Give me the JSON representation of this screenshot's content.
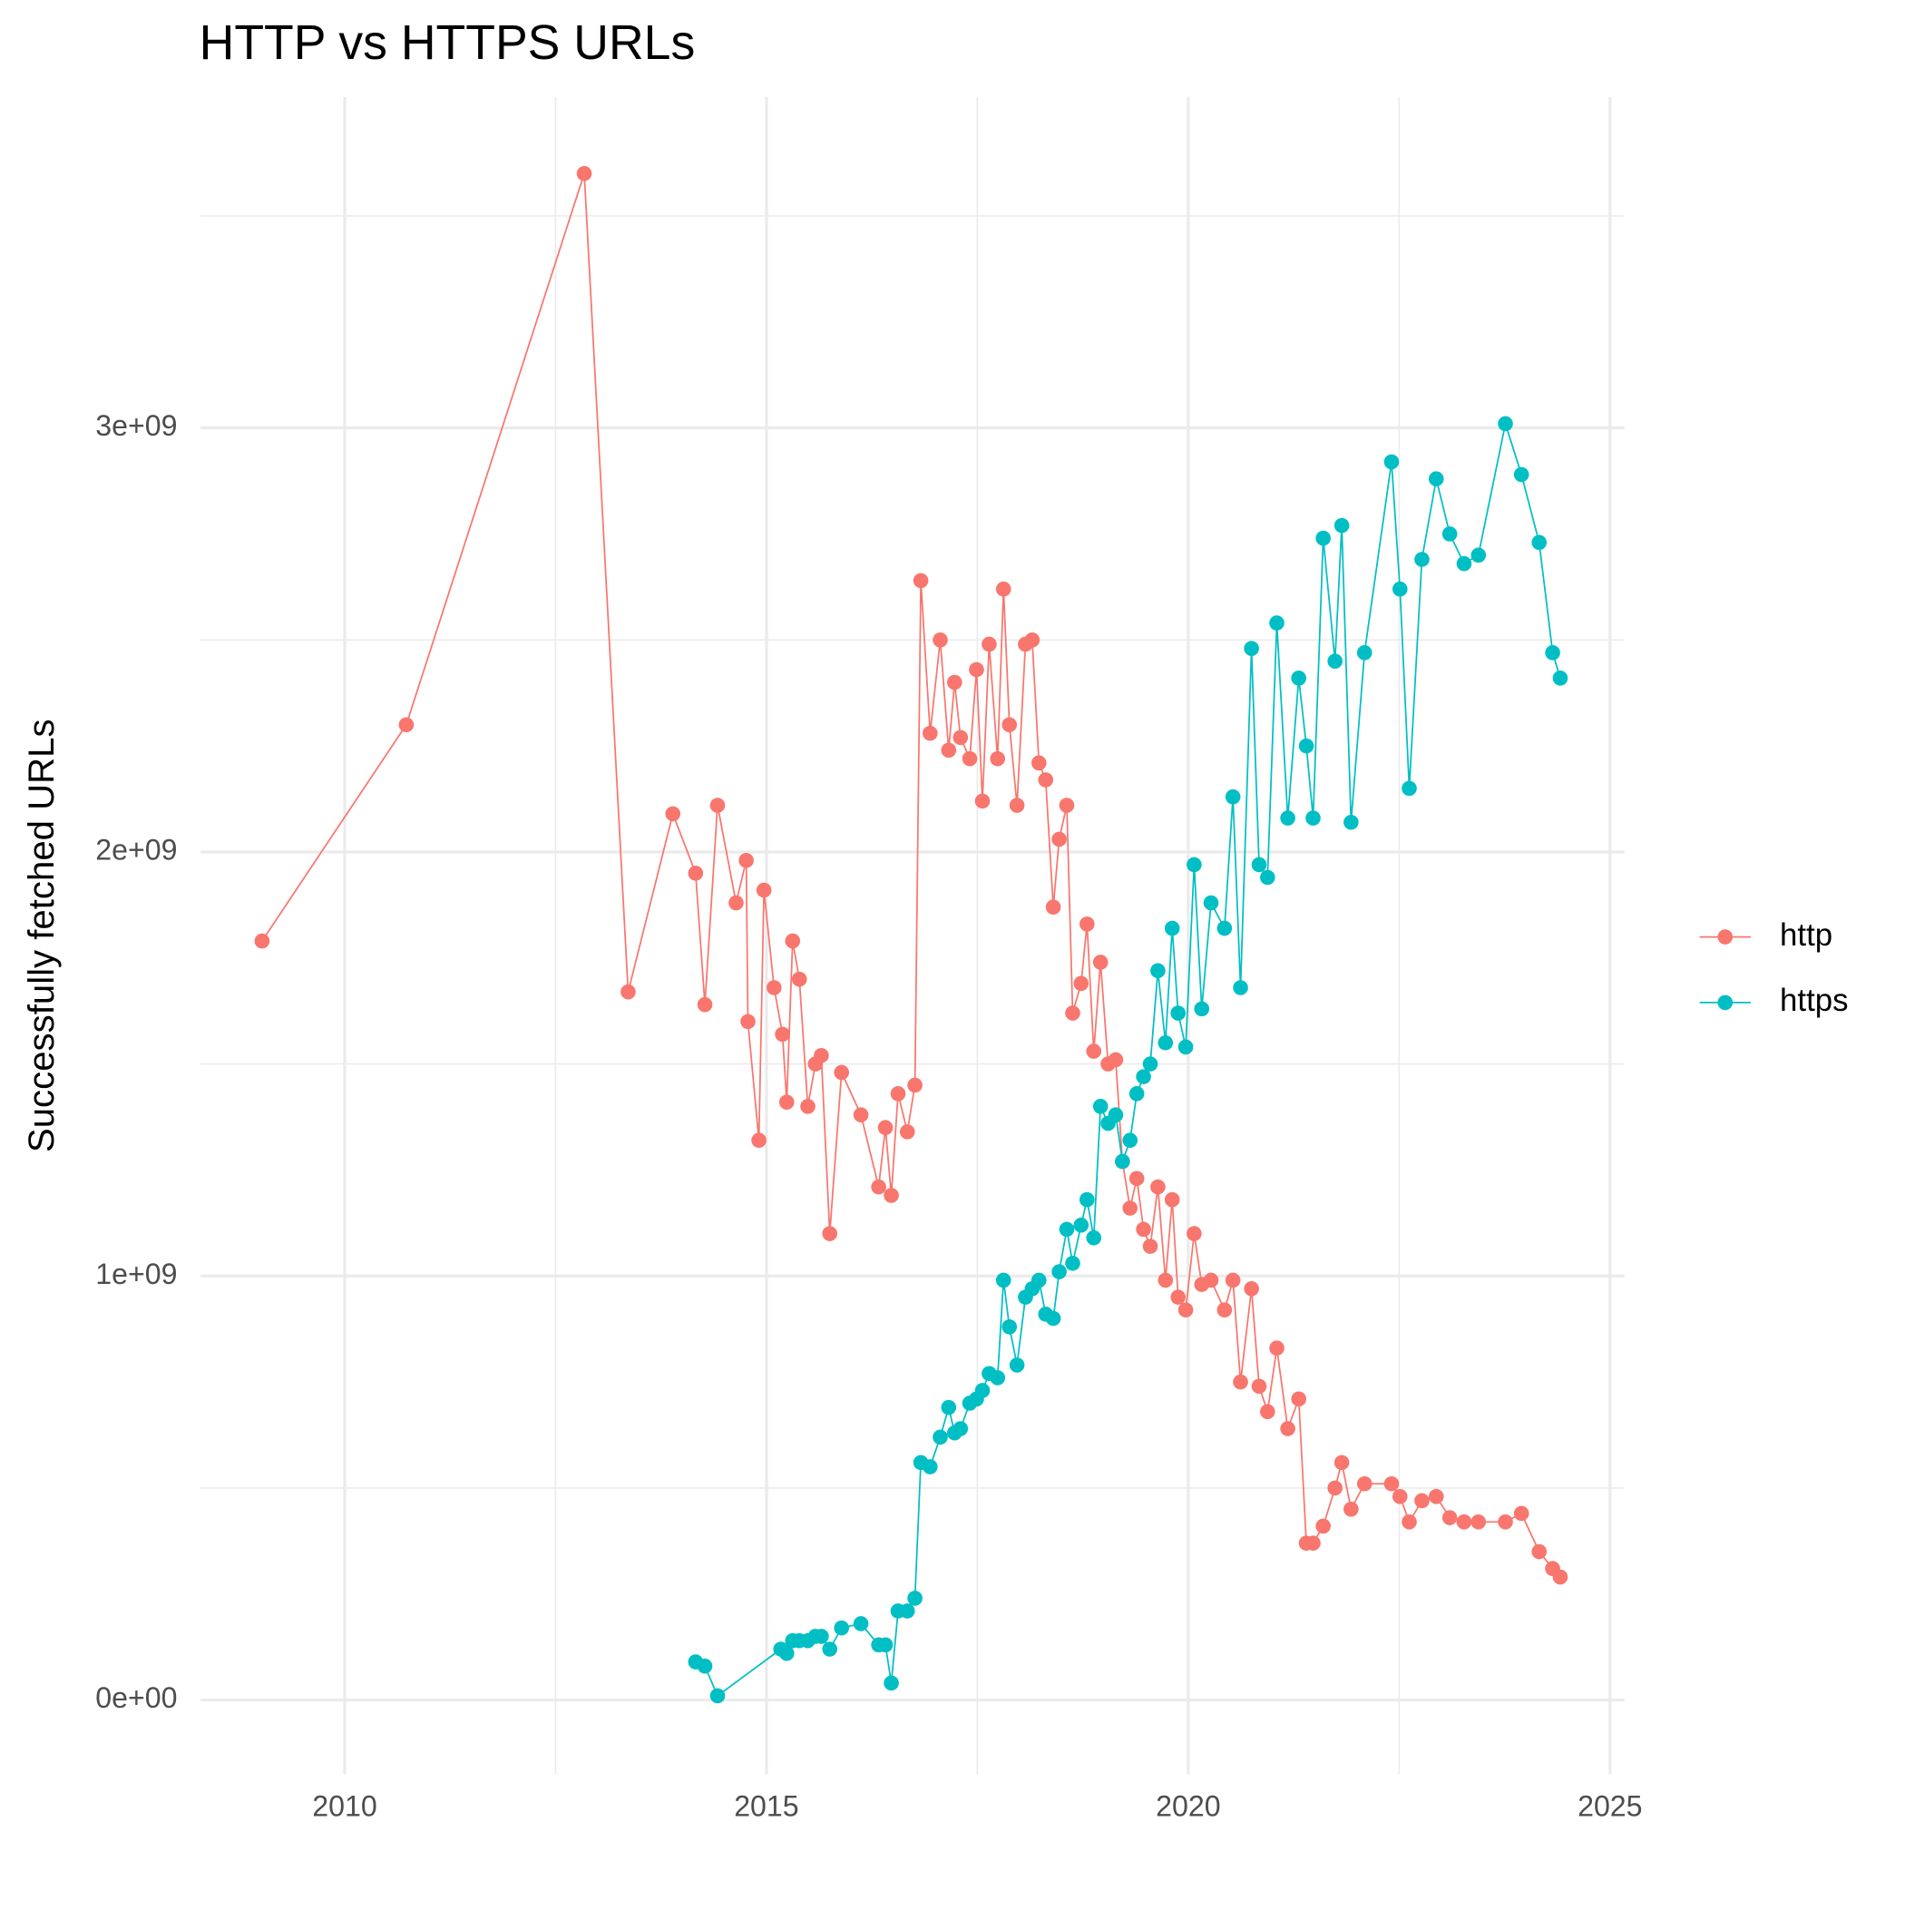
{
  "chart_data": {
    "type": "line",
    "title": "HTTP vs HTTPS URLs",
    "ylabel": "Successfully fetched URLs",
    "xlim": [
      2008.29,
      2025.17
    ],
    "xticks": [
      2010,
      2015,
      2020,
      2025
    ],
    "xminorticks": [
      2012.5,
      2017.5,
      2022.5
    ],
    "ylim": [
      -175000000,
      3780000000
    ],
    "yticks": [
      {
        "value": 0,
        "label": "0e+00"
      },
      {
        "value": 1000000000,
        "label": "1e+09"
      },
      {
        "value": 2000000000,
        "label": "2e+09"
      },
      {
        "value": 3000000000,
        "label": "3e+09"
      }
    ],
    "yminorticks": [
      500000000,
      1500000000,
      2500000000,
      3500000000
    ],
    "grid": true,
    "legend": "right",
    "series": [
      {
        "name": "http",
        "color": "#F8766D",
        "x": [
          2009.02,
          2010.73,
          2012.84,
          2013.36,
          2013.89,
          2014.16,
          2014.27,
          2014.42,
          2014.64,
          2014.76,
          2014.78,
          2014.91,
          2014.97,
          2015.09,
          2015.19,
          2015.24,
          2015.31,
          2015.39,
          2015.49,
          2015.58,
          2015.65,
          2015.75,
          2015.89,
          2016.12,
          2016.33,
          2016.41,
          2016.48,
          2016.56,
          2016.67,
          2016.76,
          2016.83,
          2016.94,
          2017.06,
          2017.16,
          2017.23,
          2017.3,
          2017.41,
          2017.49,
          2017.56,
          2017.64,
          2017.74,
          2017.81,
          2017.88,
          2017.97,
          2018.07,
          2018.15,
          2018.23,
          2018.31,
          2018.4,
          2018.47,
          2018.56,
          2018.63,
          2018.73,
          2018.8,
          2018.88,
          2018.96,
          2019.05,
          2019.14,
          2019.22,
          2019.31,
          2019.39,
          2019.47,
          2019.55,
          2019.64,
          2019.73,
          2019.81,
          2019.88,
          2019.97,
          2020.07,
          2020.16,
          2020.27,
          2020.43,
          2020.53,
          2020.62,
          2020.75,
          2020.84,
          2020.94,
          2021.05,
          2021.18,
          2021.31,
          2021.4,
          2021.48,
          2021.6,
          2021.74,
          2021.82,
          2021.93,
          2022.09,
          2022.41,
          2022.51,
          2022.62,
          2022.77,
          2022.94,
          2023.1,
          2023.27,
          2023.44,
          2023.76,
          2023.95,
          2024.16,
          2024.32,
          2024.41
        ],
        "values": [
          1790000000,
          2300000000,
          3600000000,
          1670000000,
          2090000000,
          1950000000,
          1640000000,
          2110000000,
          1880000000,
          1980000000,
          1600000000,
          1320000000,
          1910000000,
          1680000000,
          1570000000,
          1410000000,
          1790000000,
          1700000000,
          1400000000,
          1500000000,
          1520000000,
          1100000000,
          1480000000,
          1380000000,
          1210000000,
          1350000000,
          1190000000,
          1430000000,
          1340000000,
          1450000000,
          2640000000,
          2280000000,
          2500000000,
          2240000000,
          2400000000,
          2270000000,
          2220000000,
          2430000000,
          2120000000,
          2490000000,
          2220000000,
          2620000000,
          2300000000,
          2110000000,
          2490000000,
          2500000000,
          2210000000,
          2170000000,
          1870000000,
          2030000000,
          2110000000,
          1620000000,
          1690000000,
          1830000000,
          1530000000,
          1740000000,
          1500000000,
          1510000000,
          1270000000,
          1160000000,
          1230000000,
          1110000000,
          1070000000,
          1210000000,
          990000000,
          1180000000,
          950000000,
          920000000,
          1100000000,
          980000000,
          990000000,
          920000000,
          990000000,
          750000000,
          970000000,
          740000000,
          680000000,
          830000000,
          640000000,
          710000000,
          370000000,
          370000000,
          410000000,
          500000000,
          560000000,
          450000000,
          510000000,
          510000000,
          480000000,
          420000000,
          470000000,
          480000000,
          430000000,
          420000000,
          420000000,
          420000000,
          440000000,
          350000000,
          310000000,
          290000000
        ]
      },
      {
        "name": "https",
        "color": "#00BFC4",
        "x": [
          2014.16,
          2014.27,
          2014.42,
          2015.17,
          2015.24,
          2015.31,
          2015.39,
          2015.49,
          2015.58,
          2015.65,
          2015.75,
          2015.89,
          2016.12,
          2016.33,
          2016.41,
          2016.48,
          2016.56,
          2016.67,
          2016.76,
          2016.83,
          2016.94,
          2017.06,
          2017.16,
          2017.23,
          2017.3,
          2017.41,
          2017.49,
          2017.56,
          2017.64,
          2017.74,
          2017.81,
          2017.88,
          2017.97,
          2018.07,
          2018.15,
          2018.23,
          2018.31,
          2018.4,
          2018.47,
          2018.56,
          2018.63,
          2018.73,
          2018.8,
          2018.88,
          2018.96,
          2019.05,
          2019.14,
          2019.22,
          2019.31,
          2019.39,
          2019.47,
          2019.55,
          2019.64,
          2019.73,
          2019.81,
          2019.88,
          2019.97,
          2020.07,
          2020.16,
          2020.27,
          2020.43,
          2020.53,
          2020.62,
          2020.75,
          2020.84,
          2020.94,
          2021.05,
          2021.18,
          2021.31,
          2021.4,
          2021.48,
          2021.6,
          2021.74,
          2021.82,
          2021.93,
          2022.09,
          2022.41,
          2022.51,
          2022.62,
          2022.77,
          2022.94,
          2023.1,
          2023.27,
          2023.44,
          2023.76,
          2023.95,
          2024.16,
          2024.32,
          2024.41
        ],
        "values": [
          90000000,
          80000000,
          10000000,
          120000000,
          110000000,
          140000000,
          140000000,
          140000000,
          150000000,
          150000000,
          120000000,
          170000000,
          180000000,
          130000000,
          130000000,
          40000000,
          210000000,
          210000000,
          240000000,
          560000000,
          550000000,
          620000000,
          690000000,
          630000000,
          640000000,
          700000000,
          710000000,
          730000000,
          770000000,
          760000000,
          990000000,
          880000000,
          790000000,
          950000000,
          970000000,
          990000000,
          910000000,
          900000000,
          1010000000,
          1110000000,
          1030000000,
          1120000000,
          1180000000,
          1090000000,
          1400000000,
          1360000000,
          1380000000,
          1270000000,
          1320000000,
          1430000000,
          1470000000,
          1500000000,
          1720000000,
          1550000000,
          1820000000,
          1620000000,
          1540000000,
          1970000000,
          1630000000,
          1880000000,
          1820000000,
          2130000000,
          1680000000,
          2480000000,
          1970000000,
          1940000000,
          2540000000,
          2080000000,
          2410000000,
          2250000000,
          2080000000,
          2740000000,
          2450000000,
          2770000000,
          2070000000,
          2470000000,
          2920000000,
          2620000000,
          2150000000,
          2690000000,
          2880000000,
          2750000000,
          2680000000,
          2700000000,
          3010000000,
          2890000000,
          2730000000,
          2470000000,
          2410000000
        ]
      }
    ]
  }
}
